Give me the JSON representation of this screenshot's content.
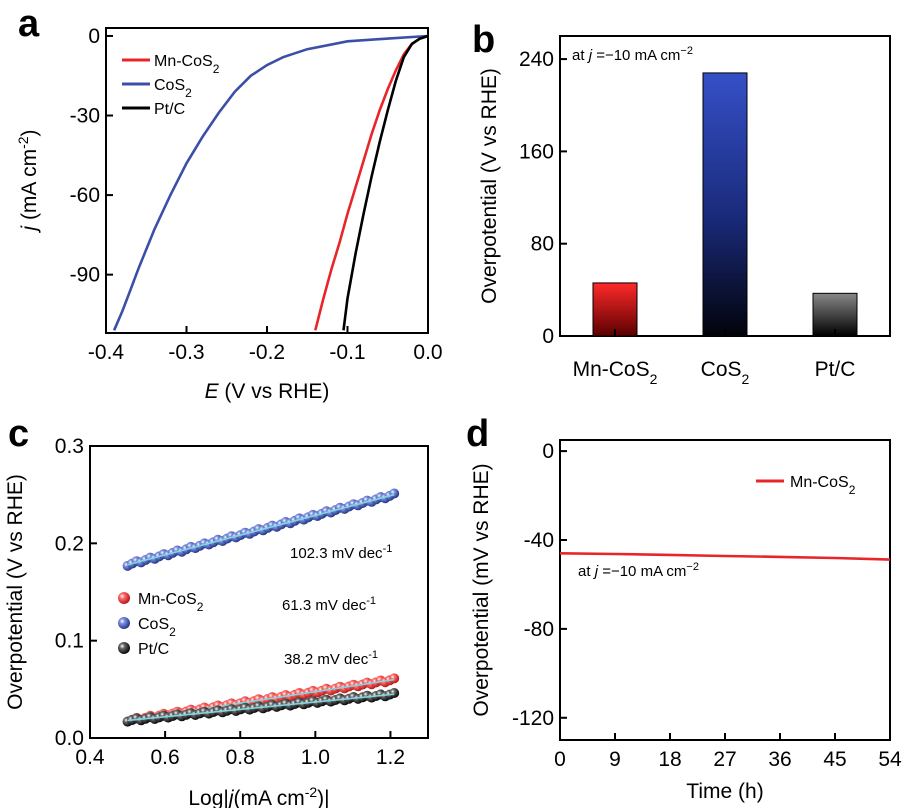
{
  "figure": {
    "panel_letters": [
      "a",
      "b",
      "c",
      "d"
    ]
  },
  "chart_data": [
    {
      "panel": "a",
      "type": "line",
      "xlabel_italic": "E",
      "xlabel_rest": " (V vs RHE)",
      "ylabel_italic": "j",
      "ylabel_rest": " (mA cm",
      "ylabel_sup": "-2",
      "ylabel_close": ")",
      "xlim": [
        -0.4,
        0.0
      ],
      "ylim": [
        -112,
        3
      ],
      "xticks": [
        -0.4,
        -0.3,
        -0.2,
        -0.1,
        0.0
      ],
      "xtick_labels": [
        "-0.4",
        "-0.3",
        "-0.2",
        "-0.1",
        "0.0"
      ],
      "yticks": [
        0,
        -30,
        -60,
        -90
      ],
      "ytick_labels": [
        "0",
        "-30",
        "-60",
        "-90"
      ],
      "legend_position": "top-left",
      "series": [
        {
          "name_main": "Mn-CoS",
          "name_sub": "2",
          "color": "#e8262a",
          "x": [
            0.0,
            -0.01,
            -0.02,
            -0.03,
            -0.04,
            -0.05,
            -0.06,
            -0.07,
            -0.08,
            -0.09,
            -0.1,
            -0.11,
            -0.12,
            -0.13,
            -0.14
          ],
          "y": [
            0,
            -1,
            -3,
            -7,
            -13,
            -20,
            -28,
            -37,
            -47,
            -57,
            -67,
            -78,
            -88,
            -99,
            -111
          ]
        },
        {
          "name_main": "CoS",
          "name_sub": "2",
          "color": "#3b4fa8",
          "x": [
            0.0,
            -0.05,
            -0.1,
            -0.15,
            -0.18,
            -0.2,
            -0.22,
            -0.24,
            -0.26,
            -0.28,
            -0.3,
            -0.32,
            -0.34,
            -0.36,
            -0.37,
            -0.38,
            -0.39
          ],
          "y": [
            0,
            -1,
            -2,
            -5,
            -8,
            -11,
            -15,
            -21,
            -29,
            -38,
            -48,
            -60,
            -73,
            -88,
            -96,
            -104,
            -111
          ]
        },
        {
          "name_main": "Pt/C",
          "name_sub": "",
          "color": "#000000",
          "x": [
            0.0,
            -0.01,
            -0.02,
            -0.03,
            -0.04,
            -0.05,
            -0.06,
            -0.07,
            -0.08,
            -0.09,
            -0.1,
            -0.105
          ],
          "y": [
            0,
            -1,
            -3,
            -8,
            -17,
            -28,
            -40,
            -53,
            -67,
            -82,
            -99,
            -111
          ]
        }
      ]
    },
    {
      "panel": "b",
      "type": "bar",
      "ylabel": "Overpotential (V vs RHE)",
      "annotation_pre": "at ",
      "annotation_italic": "j",
      "annotation_post": " =−10 mA cm",
      "annotation_sup": "−2",
      "ylim": [
        0,
        260
      ],
      "yticks": [
        0,
        80,
        160,
        240
      ],
      "ytick_labels": [
        "0",
        "80",
        "160",
        "240"
      ],
      "categories": [
        {
          "main": "Mn-CoS",
          "sub": "2"
        },
        {
          "main": "CoS",
          "sub": "2"
        },
        {
          "main": "Pt/C",
          "sub": ""
        }
      ],
      "values": [
        46,
        228,
        37
      ],
      "colors": [
        "#e8262a",
        "#2f44b0",
        "#555555"
      ]
    },
    {
      "panel": "c",
      "type": "scatter",
      "xlabel_pre": "Log|",
      "xlabel_italic": "j",
      "xlabel_mid": "(mA cm",
      "xlabel_sup": "-2",
      "xlabel_post": ")|",
      "ylabel": "Overpotential (V vs RHE)",
      "xlim": [
        0.4,
        1.3
      ],
      "ylim": [
        0.0,
        0.3
      ],
      "xticks": [
        0.4,
        0.6,
        0.8,
        1.0,
        1.2
      ],
      "xtick_labels": [
        "0.4",
        "0.6",
        "0.8",
        "1.0",
        "1.2"
      ],
      "yticks": [
        0.0,
        0.1,
        0.2,
        0.3
      ],
      "ytick_labels": [
        "0.0",
        "0.1",
        "0.2",
        "0.3"
      ],
      "legend_position": "middle-left",
      "fit_color": "#7fd6e0",
      "series": [
        {
          "name_main": "Mn-CoS",
          "name_sub": "2",
          "color": "#e8262a",
          "x_start": 0.5,
          "x_end": 1.21,
          "y_start": 0.018,
          "y_end": 0.06,
          "slope_label": "61.3 mV dec",
          "slope_sup": "-1"
        },
        {
          "name_main": "CoS",
          "name_sub": "2",
          "color": "#3b4fa8",
          "x_start": 0.5,
          "x_end": 1.21,
          "y_start": 0.178,
          "y_end": 0.25,
          "slope_label": "102.3 mV dec",
          "slope_sup": "-1"
        },
        {
          "name_main": "Pt/C",
          "name_sub": "",
          "color": "#111111",
          "x_start": 0.5,
          "x_end": 1.21,
          "y_start": 0.018,
          "y_end": 0.045,
          "slope_label": "38.2 mV dec",
          "slope_sup": "-1"
        }
      ]
    },
    {
      "panel": "d",
      "type": "line",
      "xlabel": "Time (h)",
      "ylabel": "Overpotential (mV vs RHE)",
      "annotation_pre": "at ",
      "annotation_italic": "j",
      "annotation_post": " =−10 mA cm",
      "annotation_sup": "−2",
      "xlim": [
        0,
        54
      ],
      "ylim": [
        -130,
        5
      ],
      "xticks": [
        0,
        9,
        18,
        27,
        36,
        45,
        54
      ],
      "xtick_labels": [
        "0",
        "9",
        "18",
        "27",
        "36",
        "45",
        "54"
      ],
      "yticks": [
        0,
        -40,
        -80,
        -120
      ],
      "ytick_labels": [
        "0",
        "-40",
        "-80",
        "-120"
      ],
      "legend_position": "top-right",
      "series": [
        {
          "name_main": "Mn-CoS",
          "name_sub": "2",
          "color": "#e8262a",
          "x": [
            0,
            9,
            18,
            27,
            36,
            45,
            54
          ],
          "y": [
            -46,
            -46.3,
            -46.7,
            -47.2,
            -47.6,
            -48.1,
            -48.8
          ]
        }
      ]
    }
  ]
}
